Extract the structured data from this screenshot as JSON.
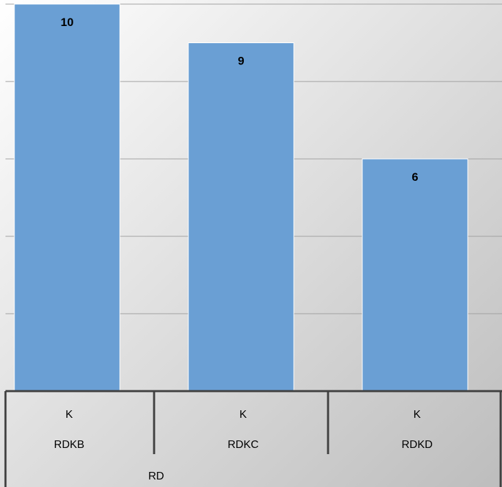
{
  "chart_data": {
    "type": "bar",
    "categories": [
      {
        "level1": "K",
        "level2": "RDKB"
      },
      {
        "level1": "K",
        "level2": "RDKC"
      },
      {
        "level1": "K",
        "level2": "RDKD"
      }
    ],
    "group_label": "RD",
    "values": [
      10,
      9,
      6
    ],
    "data_labels": [
      "10",
      "9",
      "6"
    ],
    "ylim": [
      0,
      10
    ],
    "y_gridline_step": 2,
    "grid": true,
    "legend": "none",
    "title": "",
    "xlabel": "",
    "ylabel": "",
    "colors": {
      "bar": "#6a9fd4",
      "bar_edge": "#ffffff",
      "gridline": "#a0a0a0",
      "axis": "#404040",
      "background_light": "#ffffff",
      "background_dark": "#bdbdbd"
    }
  }
}
